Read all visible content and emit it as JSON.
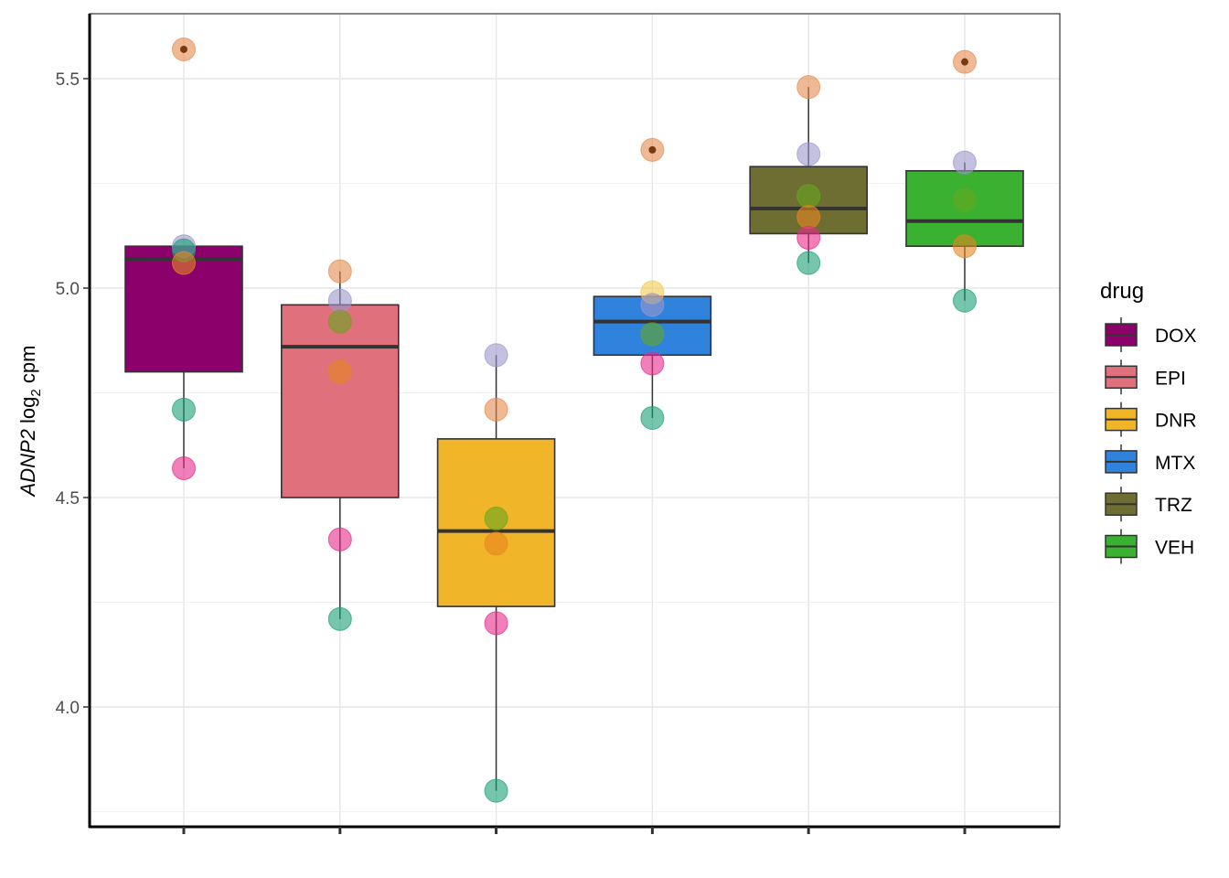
{
  "chart_data": {
    "type": "box",
    "ylabel": {
      "gene": "ADNP2",
      "rest": " log",
      "subscript": "2",
      "unit": " cpm"
    },
    "xlabel": "",
    "ylim": [
      3.8,
      5.65
    ],
    "y_ticks": [
      4.0,
      4.5,
      5.0,
      5.5
    ],
    "y_tick_labels": [
      "4.0",
      "4.5",
      "5.0",
      "5.5"
    ],
    "grid": true,
    "legend": {
      "title": "drug",
      "placement": "right"
    },
    "categories": [
      "DOX",
      "EPI",
      "DNR",
      "MTX",
      "TRZ",
      "VEH"
    ],
    "series": [
      {
        "name": "DOX",
        "color": "#8B006B",
        "q1": 4.8,
        "median": 5.07,
        "q3": 5.1,
        "whisker_low": 4.57,
        "whisker_high": 5.1,
        "points": [
          5.57,
          5.1,
          5.09,
          5.06,
          4.71,
          4.57
        ],
        "point_colors": [
          "#E58A4E",
          "#9B96CC",
          "#1B9E77",
          "#E6861F",
          "#1B9E77",
          "#E7298A"
        ],
        "outliers": [
          5.57
        ]
      },
      {
        "name": "EPI",
        "color": "#E0707C",
        "q1": 4.5,
        "median": 4.86,
        "q3": 4.96,
        "whisker_low": 4.21,
        "whisker_high": 5.04,
        "points": [
          5.04,
          4.97,
          4.92,
          4.8,
          4.4,
          4.21
        ],
        "point_colors": [
          "#E58A4E",
          "#9B96CC",
          "#66A61E",
          "#E6861F",
          "#E7298A",
          "#1B9E77"
        ],
        "outliers": []
      },
      {
        "name": "DNR",
        "color": "#F0B529",
        "q1": 4.24,
        "median": 4.42,
        "q3": 4.64,
        "whisker_low": 3.8,
        "whisker_high": 4.84,
        "points": [
          4.84,
          4.71,
          4.45,
          4.39,
          4.2,
          3.8
        ],
        "point_colors": [
          "#9B96CC",
          "#E58A4E",
          "#66A61E",
          "#E6861F",
          "#E7298A",
          "#1B9E77"
        ],
        "outliers": []
      },
      {
        "name": "MTX",
        "color": "#3083DC",
        "q1": 4.84,
        "median": 4.92,
        "q3": 4.98,
        "whisker_low": 4.69,
        "whisker_high": 4.98,
        "points": [
          5.33,
          4.99,
          4.96,
          4.89,
          4.82,
          4.69
        ],
        "point_colors": [
          "#E58A4E",
          "#F2C94C",
          "#9B96CC",
          "#66A61E",
          "#E7298A",
          "#1B9E77"
        ],
        "outliers": [
          5.33
        ]
      },
      {
        "name": "TRZ",
        "color": "#6E6E32",
        "q1": 5.13,
        "median": 5.19,
        "q3": 5.29,
        "whisker_low": 5.06,
        "whisker_high": 5.48,
        "points": [
          5.48,
          5.32,
          5.22,
          5.17,
          5.12,
          5.06
        ],
        "point_colors": [
          "#E58A4E",
          "#9B96CC",
          "#66A61E",
          "#E6861F",
          "#E7298A",
          "#1B9E77"
        ],
        "outliers": []
      },
      {
        "name": "VEH",
        "color": "#3BB132",
        "q1": 5.1,
        "median": 5.16,
        "q3": 5.28,
        "whisker_low": 4.97,
        "whisker_high": 5.3,
        "points": [
          5.54,
          5.3,
          5.21,
          5.1,
          4.97
        ],
        "point_colors": [
          "#E58A4E",
          "#9B96CC",
          "#66A61E",
          "#E6861F",
          "#1B9E77"
        ],
        "outliers": [
          5.54
        ]
      }
    ]
  }
}
